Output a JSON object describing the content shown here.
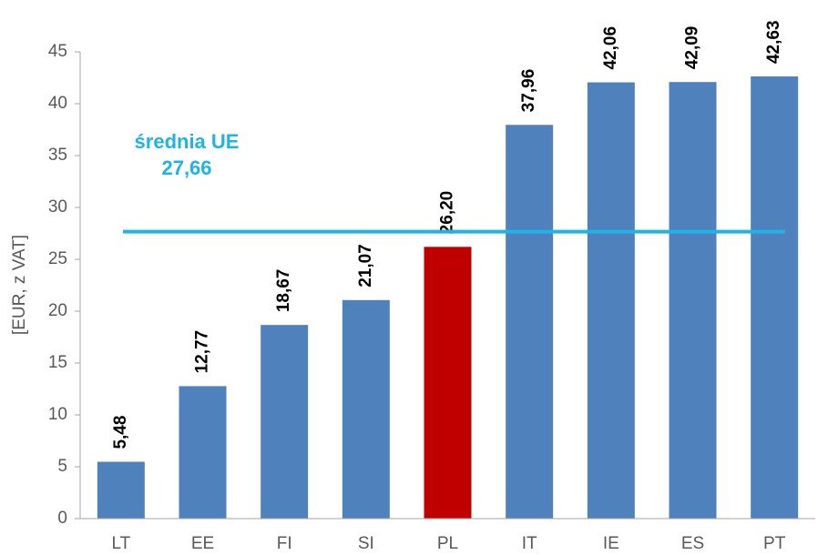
{
  "chart_data": {
    "type": "bar",
    "ylabel": "[EUR, z VAT]",
    "categories": [
      "LT",
      "EE",
      "FI",
      "SI",
      "PL",
      "IT",
      "IE",
      "ES",
      "PT"
    ],
    "values": [
      5.48,
      12.77,
      18.67,
      21.07,
      26.2,
      37.96,
      42.06,
      42.09,
      42.63
    ],
    "value_labels": [
      "5,48",
      "12,77",
      "18,67",
      "21,07",
      "26,20",
      "37,96",
      "42,06",
      "42,09",
      "42,63"
    ],
    "colors": [
      "#4f81bd",
      "#4f81bd",
      "#4f81bd",
      "#4f81bd",
      "#c00000",
      "#4f81bd",
      "#4f81bd",
      "#4f81bd",
      "#4f81bd"
    ],
    "ylim": [
      0,
      45
    ],
    "yticks": [
      0,
      5,
      10,
      15,
      20,
      25,
      30,
      35,
      40,
      45
    ],
    "grid": false,
    "reference_line": {
      "name": "średnia UE",
      "value": 27.66,
      "label": "27,66",
      "color": "#1fb4e6"
    }
  }
}
